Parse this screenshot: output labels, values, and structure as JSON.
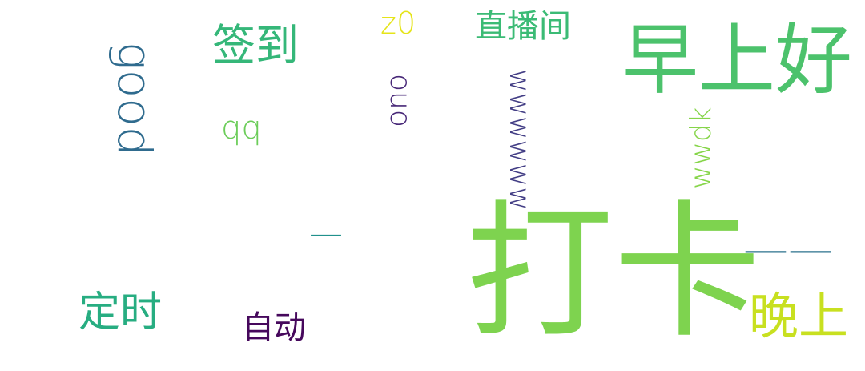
{
  "words": [
    {
      "key": "daka",
      "text": "打卡",
      "color": "#7ed34f",
      "orientation": "horizontal"
    },
    {
      "key": "zaoshanghao",
      "text": "早上好",
      "color": "#4cc26c",
      "orientation": "horizontal"
    },
    {
      "key": "qiandao",
      "text": "签到",
      "color": "#35b779",
      "orientation": "horizontal"
    },
    {
      "key": "dingshi",
      "text": "定时",
      "color": "#27ad81",
      "orientation": "horizontal"
    },
    {
      "key": "wanshang",
      "text": "晚上",
      "color": "#c8e020",
      "orientation": "horizontal"
    },
    {
      "key": "zhibojian",
      "text": "直播间",
      "color": "#3bbb75",
      "orientation": "horizontal"
    },
    {
      "key": "zidong",
      "text": "自动",
      "color": "#46085c",
      "orientation": "horizontal"
    },
    {
      "key": "good",
      "text": "good",
      "color": "#2f6b8e",
      "orientation": "vertical-cw"
    },
    {
      "key": "wwwwww",
      "text": "wwwwww",
      "color": "#433e85",
      "orientation": "vertical-cw"
    },
    {
      "key": "ouo",
      "text": "ouo",
      "color": "#482878",
      "orientation": "vertical-cw"
    },
    {
      "key": "wwdk",
      "text": "wwdk",
      "color": "#86d549",
      "orientation": "vertical-ccw"
    },
    {
      "key": "z0",
      "text": "z0",
      "color": "#e5e419",
      "orientation": "horizontal"
    },
    {
      "key": "qq",
      "text": "qq",
      "color": "#6ccd5a",
      "orientation": "horizontal"
    },
    {
      "key": "dash1",
      "text": "—",
      "color": "#21918c",
      "orientation": "horizontal"
    },
    {
      "key": "dash2",
      "text": "——",
      "color": "#2c728e",
      "orientation": "horizontal"
    }
  ]
}
